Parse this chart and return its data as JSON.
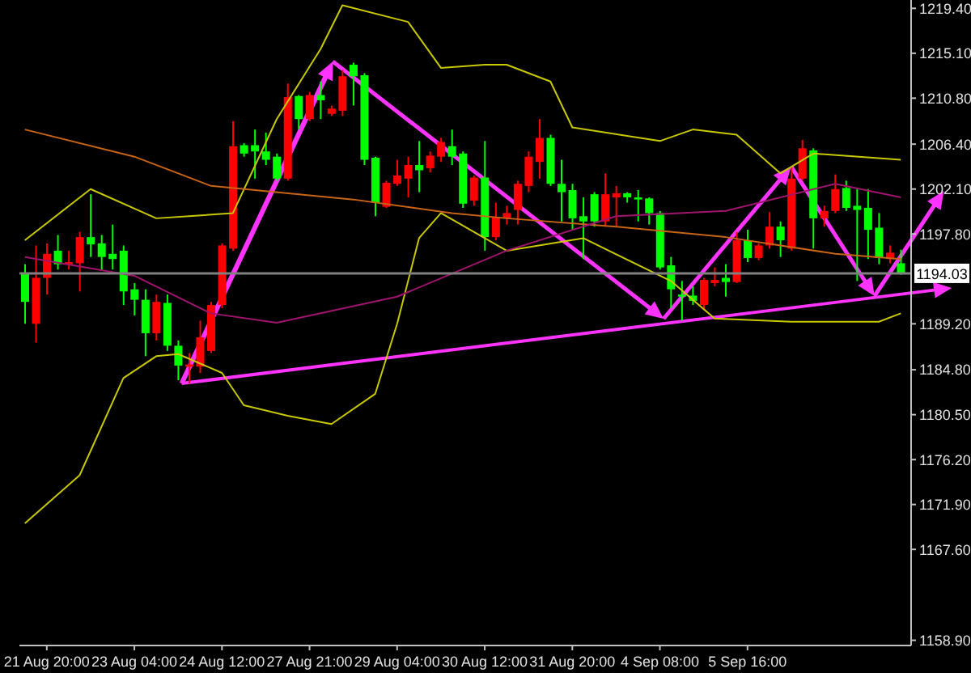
{
  "chart_data": {
    "type": "candlestick",
    "categories": [
      null,
      null,
      "21 Aug 20:00",
      null,
      null,
      null,
      null,
      null,
      null,
      null,
      "23 Aug 04:00",
      null,
      null,
      null,
      null,
      null,
      null,
      null,
      "24 Aug 12:00",
      null,
      null,
      null,
      null,
      null,
      null,
      null,
      "27 Aug 21:00",
      null,
      null,
      null,
      null,
      null,
      null,
      null,
      "29 Aug 04:00",
      null,
      null,
      null,
      null,
      null,
      null,
      null,
      "30 Aug 12:00",
      null,
      null,
      null,
      null,
      null,
      null,
      null,
      "31 Aug 20:00",
      null,
      null,
      null,
      null,
      null,
      null,
      null,
      "4 Sep 08:00",
      null,
      null,
      null,
      null,
      null,
      null,
      null,
      "5 Sep 16:00",
      null,
      null,
      null,
      null,
      null,
      null,
      null,
      null,
      null,
      null,
      null,
      null,
      null,
      null
    ],
    "ohlc": [
      [
        1194.1,
        1194.9,
        1189.2,
        1191.3
      ],
      [
        1189.2,
        1196.7,
        1187.4,
        1193.6
      ],
      [
        1193.6,
        1196.9,
        1192.0,
        1195.9
      ],
      [
        1196.2,
        1197.7,
        1194.4,
        1194.9
      ],
      [
        1194.9,
        1196.2,
        1194.4,
        1195.1
      ],
      [
        1195.0,
        1198.0,
        1192.3,
        1197.5
      ],
      [
        1197.5,
        1201.6,
        1195.6,
        1196.8
      ],
      [
        1196.9,
        1197.7,
        1194.4,
        1195.6
      ],
      [
        1195.9,
        1198.7,
        1194.4,
        1195.4
      ],
      [
        1196.2,
        1196.7,
        1191.0,
        1192.3
      ],
      [
        1192.5,
        1193.1,
        1190.0,
        1191.5
      ],
      [
        1191.5,
        1192.5,
        1186.1,
        1188.3
      ],
      [
        1188.3,
        1192.0,
        1187.6,
        1191.3
      ],
      [
        1191.2,
        1192.0,
        1186.6,
        1187.1
      ],
      [
        1187.1,
        1187.6,
        1183.8,
        1185.2
      ],
      [
        1185.1,
        1186.4,
        1183.5,
        1185.3
      ],
      [
        1185.1,
        1189.5,
        1184.5,
        1187.9
      ],
      [
        1186.6,
        1191.3,
        1186.4,
        1191.0
      ],
      [
        1191.0,
        1196.9,
        1190.7,
        1196.7
      ],
      [
        1196.4,
        1208.6,
        1196.2,
        1206.2
      ],
      [
        1206.3,
        1206.5,
        1205.2,
        1205.5
      ],
      [
        1206.3,
        1207.8,
        1203.1,
        1205.7
      ],
      [
        1205.7,
        1207.5,
        1204.4,
        1204.9
      ],
      [
        1205.2,
        1205.5,
        1202.9,
        1203.1
      ],
      [
        1203.1,
        1212.2,
        1202.9,
        1210.9
      ],
      [
        1211.0,
        1211.1,
        1207.8,
        1208.8
      ],
      [
        1208.8,
        1211.4,
        1208.6,
        1211.1
      ],
      [
        1211.1,
        1212.4,
        1208.8,
        1210.6
      ],
      [
        1209.3,
        1210.1,
        1209.1,
        1209.8
      ],
      [
        1209.6,
        1213.5,
        1209.1,
        1212.9
      ],
      [
        1214.0,
        1214.2,
        1210.1,
        1212.9
      ],
      [
        1213.0,
        1213.2,
        1204.4,
        1204.9
      ],
      [
        1205.1,
        1205.2,
        1199.5,
        1200.8
      ],
      [
        1200.4,
        1202.9,
        1200.3,
        1202.7
      ],
      [
        1202.6,
        1204.9,
        1202.4,
        1203.4
      ],
      [
        1203.1,
        1205.2,
        1201.3,
        1204.4
      ],
      [
        1204.4,
        1206.7,
        1201.8,
        1203.9
      ],
      [
        1204.1,
        1205.7,
        1203.7,
        1205.3
      ],
      [
        1205.2,
        1207.0,
        1204.7,
        1206.6
      ],
      [
        1206.2,
        1207.8,
        1204.4,
        1205.2
      ],
      [
        1205.5,
        1205.7,
        1200.3,
        1200.7
      ],
      [
        1201.0,
        1203.4,
        1200.5,
        1203.2
      ],
      [
        1203.2,
        1206.7,
        1196.2,
        1197.5
      ],
      [
        1197.5,
        1200.8,
        1197.2,
        1199.4
      ],
      [
        1199.3,
        1200.5,
        1198.7,
        1199.8
      ],
      [
        1200.1,
        1202.9,
        1198.7,
        1202.6
      ],
      [
        1202.4,
        1205.7,
        1201.8,
        1205.2
      ],
      [
        1204.7,
        1208.8,
        1203.1,
        1207.0
      ],
      [
        1207.0,
        1207.3,
        1202.4,
        1202.6
      ],
      [
        1202.6,
        1204.9,
        1199.0,
        1201.8
      ],
      [
        1202.0,
        1202.6,
        1198.2,
        1199.3
      ],
      [
        1199.5,
        1201.3,
        1195.4,
        1199.0
      ],
      [
        1201.6,
        1201.8,
        1198.5,
        1199.0
      ],
      [
        1199.0,
        1203.6,
        1198.5,
        1201.6
      ],
      [
        1201.3,
        1202.4,
        1198.5,
        1201.7
      ],
      [
        1201.7,
        1201.8,
        1200.8,
        1201.3
      ],
      [
        1201.3,
        1202.0,
        1199.0,
        1201.1
      ],
      [
        1201.2,
        1201.3,
        1198.7,
        1199.8
      ],
      [
        1199.8,
        1200.0,
        1194.4,
        1194.6
      ],
      [
        1194.8,
        1195.6,
        1190.7,
        1192.5
      ],
      [
        1192.0,
        1193.3,
        1189.5,
        1191.8
      ],
      [
        1191.9,
        1192.8,
        1191.0,
        1191.4
      ],
      [
        1191.0,
        1193.6,
        1190.5,
        1193.4
      ],
      [
        1193.1,
        1194.6,
        1192.8,
        1193.4
      ],
      [
        1193.6,
        1194.9,
        1191.8,
        1193.2
      ],
      [
        1193.2,
        1198.0,
        1193.1,
        1197.2
      ],
      [
        1197.2,
        1198.2,
        1195.1,
        1195.5
      ],
      [
        1195.5,
        1196.9,
        1195.3,
        1196.7
      ],
      [
        1196.7,
        1199.9,
        1196.4,
        1198.5
      ],
      [
        1198.5,
        1199.0,
        1195.6,
        1197.2
      ],
      [
        1196.4,
        1204.2,
        1196.2,
        1203.1
      ],
      [
        1203.1,
        1206.8,
        1202.9,
        1206.0
      ],
      [
        1205.8,
        1206.0,
        1196.4,
        1199.3
      ],
      [
        1199.3,
        1200.5,
        1198.5,
        1200.0
      ],
      [
        1200.0,
        1203.5,
        1199.8,
        1202.1
      ],
      [
        1202.2,
        1202.9,
        1200.0,
        1200.3
      ],
      [
        1200.5,
        1202.1,
        1193.3,
        1200.1
      ],
      [
        1200.3,
        1202.1,
        1195.4,
        1198.2
      ],
      [
        1198.4,
        1199.8,
        1194.9,
        1195.5
      ],
      [
        1195.4,
        1196.7,
        1195.0,
        1196.0
      ],
      [
        1195.0,
        1196.3,
        1193.9,
        1194.1
      ]
    ],
    "colors": [
      "#00ff00",
      "#ff0000",
      "#ff0000",
      "#00ff00",
      "#ff0000",
      "#ff0000",
      "#00ff00",
      "#00ff00",
      "#00ff00",
      "#00ff00",
      "#00ff00",
      "#00ff00",
      "#ff0000",
      "#00ff00",
      "#00ff00",
      "#ff0000",
      "#ff0000",
      "#ff0000",
      "#ff0000",
      "#ff0000",
      "#00ff00",
      "#00ff00",
      "#00ff00",
      "#00ff00",
      "#ff0000",
      "#00ff00",
      "#ff0000",
      "#00ff00",
      "#ff0000",
      "#ff0000",
      "#00ff00",
      "#00ff00",
      "#00ff00",
      "#ff0000",
      "#ff0000",
      "#ff0000",
      "#00ff00",
      "#ff0000",
      "#ff0000",
      "#00ff00",
      "#00ff00",
      "#ff0000",
      "#00ff00",
      "#ff0000",
      "#ff0000",
      "#ff0000",
      "#ff0000",
      "#ff0000",
      "#00ff00",
      "#00ff00",
      "#00ff00",
      "#00ff00",
      "#00ff00",
      "#ff0000",
      "#ff0000",
      "#00ff00",
      "#00ff00",
      "#00ff00",
      "#00ff00",
      "#00ff00",
      "#00ff00",
      "#00ff00",
      "#ff0000",
      "#ff0000",
      "#00ff00",
      "#ff0000",
      "#00ff00",
      "#ff0000",
      "#ff0000",
      "#00ff00",
      "#ff0000",
      "#ff0000",
      "#00ff00",
      "#ff0000",
      "#ff0000",
      "#00ff00",
      "#00ff00",
      "#00ff00",
      "#00ff00",
      "#ff0000",
      "#00ff00"
    ],
    "series": [
      {
        "type": "line",
        "color": "#c8c800",
        "values": [
          1197.2,
          null,
          null,
          null,
          null,
          null,
          1202.1,
          null,
          null,
          null,
          null,
          null,
          1199.3,
          null,
          null,
          1199.5,
          null,
          null,
          null,
          1199.8,
          null,
          null,
          null,
          1208.8,
          null,
          null,
          null,
          1215.5,
          null,
          1219.7,
          null,
          null,
          null,
          null,
          null,
          1218.1,
          null,
          null,
          1213.7,
          null,
          null,
          null,
          1214.0,
          null,
          1214.0,
          null,
          null,
          null,
          1212.4,
          null,
          1208.0,
          null,
          null,
          null,
          null,
          null,
          null,
          null,
          1206.7,
          null,
          null,
          1207.8,
          null,
          null,
          null,
          1207.3,
          null,
          null,
          null,
          1203.6,
          null,
          null,
          1205.5,
          null,
          null,
          null,
          null,
          null,
          null,
          null,
          1204.9
        ]
      },
      {
        "type": "line",
        "color": "#c8c800",
        "values": [
          1170.1,
          null,
          null,
          null,
          null,
          1174.7,
          null,
          null,
          null,
          1184.0,
          null,
          null,
          1186.1,
          null,
          1186.3,
          null,
          null,
          null,
          1184.5,
          null,
          1181.4,
          null,
          null,
          null,
          1180.4,
          null,
          null,
          null,
          1179.6,
          null,
          null,
          null,
          1182.5,
          null,
          1189.2,
          null,
          1197.4,
          null,
          1199.8,
          null,
          null,
          null,
          1197.4,
          null,
          1196.2,
          null,
          null,
          null,
          null,
          null,
          null,
          1197.4,
          null,
          null,
          null,
          null,
          null,
          null,
          null,
          1193.3,
          null,
          null,
          null,
          1189.7,
          null,
          null,
          null,
          null,
          null,
          null,
          1189.4,
          null,
          null,
          null,
          null,
          null,
          null,
          null,
          1189.4,
          null,
          1190.2
        ]
      },
      {
        "type": "line",
        "color": "#c86414",
        "values": [
          1207.8,
          null,
          null,
          null,
          null,
          null,
          null,
          null,
          null,
          null,
          1205.2,
          null,
          null,
          null,
          null,
          null,
          null,
          1202.4,
          null,
          null,
          null,
          null,
          null,
          null,
          null,
          null,
          null,
          null,
          null,
          null,
          1201.1,
          null,
          null,
          null,
          null,
          null,
          null,
          null,
          null,
          1199.8,
          null,
          null,
          null,
          null,
          1199.3,
          null,
          null,
          null,
          null,
          null,
          null,
          null,
          null,
          null,
          1198.5,
          null,
          null,
          null,
          null,
          null,
          null,
          null,
          null,
          null,
          1197.5,
          null,
          null,
          null,
          null,
          null,
          null,
          null,
          null,
          null,
          1195.9,
          null,
          null,
          null,
          null,
          null,
          1195.4
        ]
      },
      {
        "type": "line",
        "color": "#a0146e",
        "values": [
          1195.6,
          null,
          null,
          null,
          null,
          null,
          null,
          null,
          null,
          null,
          1193.8,
          null,
          null,
          null,
          null,
          null,
          null,
          1190.2,
          null,
          null,
          null,
          null,
          null,
          1189.3,
          null,
          null,
          null,
          null,
          null,
          null,
          null,
          null,
          null,
          null,
          1191.8,
          null,
          null,
          null,
          null,
          null,
          null,
          null,
          null,
          null,
          1196.2,
          null,
          null,
          null,
          null,
          null,
          null,
          null,
          null,
          null,
          1199.5,
          null,
          null,
          null,
          null,
          null,
          null,
          null,
          null,
          null,
          1200.0,
          null,
          null,
          null,
          null,
          null,
          null,
          null,
          null,
          null,
          1202.6,
          null,
          null,
          null,
          null,
          null,
          1201.3
        ]
      }
    ],
    "ylim": [
      1158.4,
      1220.2
    ],
    "yticks": [
      {
        "value": 1219.4,
        "label": "1219.40"
      },
      {
        "value": 1215.1,
        "label": "1215.10"
      },
      {
        "value": 1210.8,
        "label": "1210.80"
      },
      {
        "value": 1206.4,
        "label": "1206.40"
      },
      {
        "value": 1202.1,
        "label": "1202.10"
      },
      {
        "value": 1197.8,
        "label": "1197.80"
      },
      {
        "value": 1189.2,
        "label": "1189.20"
      },
      {
        "value": 1184.8,
        "label": "1184.80"
      },
      {
        "value": 1180.5,
        "label": "1180.50"
      },
      {
        "value": 1176.2,
        "label": "1176.20"
      },
      {
        "value": 1171.9,
        "label": "1171.90"
      },
      {
        "value": 1167.6,
        "label": "1167.60"
      },
      {
        "value": 1158.9,
        "label": "1158.90"
      }
    ],
    "ref_lines": [
      {
        "axis": "y",
        "value": 1194.03,
        "label": "1194.03",
        "color": "#808080"
      }
    ],
    "grid": false,
    "legend": false
  }
}
